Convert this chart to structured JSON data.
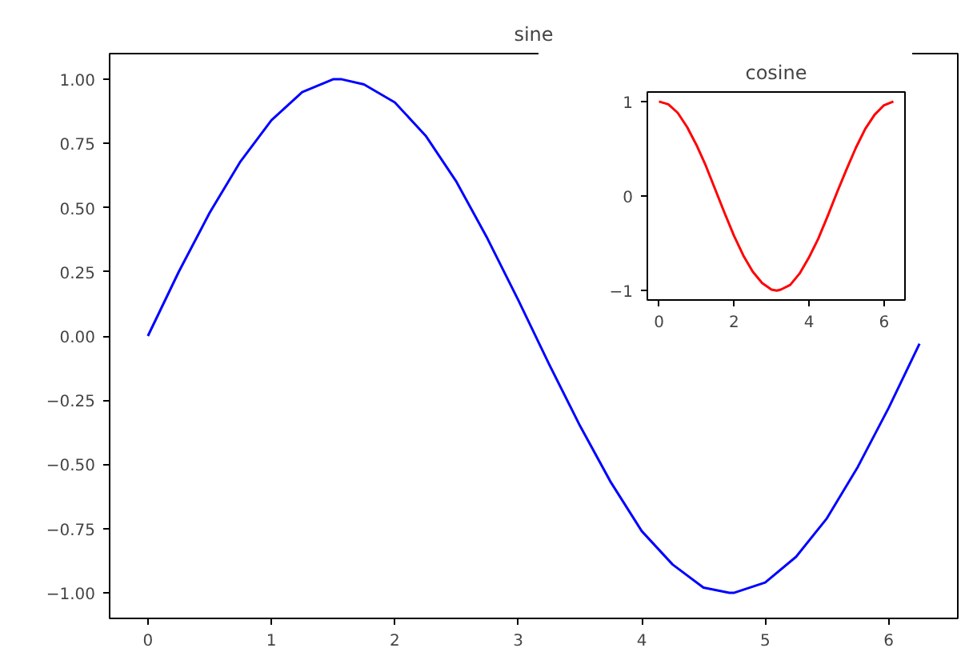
{
  "chart_data": [
    {
      "type": "line",
      "title": "sine",
      "x": [
        0,
        0.25,
        0.5,
        0.75,
        1,
        1.25,
        1.5,
        1.57,
        1.75,
        2,
        2.25,
        2.5,
        2.75,
        3,
        3.25,
        3.5,
        3.75,
        4,
        4.25,
        4.5,
        4.71,
        4.75,
        5,
        5.25,
        5.5,
        5.75,
        6,
        6.25
      ],
      "series": [
        {
          "color": "#0000ff",
          "values": [
            0,
            0.25,
            0.48,
            0.68,
            0.84,
            0.95,
            1.0,
            1.0,
            0.98,
            0.91,
            0.78,
            0.6,
            0.38,
            0.14,
            -0.11,
            -0.35,
            -0.57,
            -0.76,
            -0.89,
            -0.98,
            -1.0,
            -1.0,
            -0.96,
            -0.86,
            -0.71,
            -0.51,
            -0.28,
            -0.03
          ]
        }
      ],
      "xlim": [
        -0.31,
        6.56
      ],
      "ylim": [
        -1.1,
        1.1
      ],
      "xticks": [
        0,
        1,
        2,
        3,
        4,
        5,
        6
      ],
      "yticks": [
        {
          "value": -1,
          "label": "−1.00"
        },
        {
          "value": -0.75,
          "label": "−0.75"
        },
        {
          "value": -0.5,
          "label": "−0.50"
        },
        {
          "value": -0.25,
          "label": "−0.25"
        },
        {
          "value": 0,
          "label": "0.00"
        },
        {
          "value": 0.25,
          "label": "0.25"
        },
        {
          "value": 0.5,
          "label": "0.50"
        },
        {
          "value": 0.75,
          "label": "0.75"
        },
        {
          "value": 1,
          "label": "1.00"
        }
      ],
      "grid": false
    },
    {
      "type": "line",
      "title": "cosine",
      "x": [
        0,
        0.25,
        0.5,
        0.75,
        1,
        1.25,
        1.5,
        1.75,
        2,
        2.25,
        2.5,
        2.75,
        3,
        3.14,
        3.25,
        3.5,
        3.75,
        4,
        4.25,
        4.5,
        4.75,
        5,
        5.25,
        5.5,
        5.75,
        6,
        6.25
      ],
      "series": [
        {
          "color": "#ff0000",
          "values": [
            1,
            0.97,
            0.88,
            0.73,
            0.54,
            0.32,
            0.07,
            -0.18,
            -0.42,
            -0.63,
            -0.8,
            -0.92,
            -0.99,
            -1.0,
            -0.99,
            -0.94,
            -0.82,
            -0.65,
            -0.45,
            -0.21,
            0.04,
            0.28,
            0.51,
            0.71,
            0.86,
            0.96,
            1.0
          ]
        }
      ],
      "xlim": [
        -0.31,
        6.56
      ],
      "ylim": [
        -1.1,
        1.1
      ],
      "xticks": [
        0,
        2,
        4,
        6
      ],
      "yticks": [
        {
          "value": -1,
          "label": "−1"
        },
        0,
        1
      ],
      "grid": false
    }
  ]
}
